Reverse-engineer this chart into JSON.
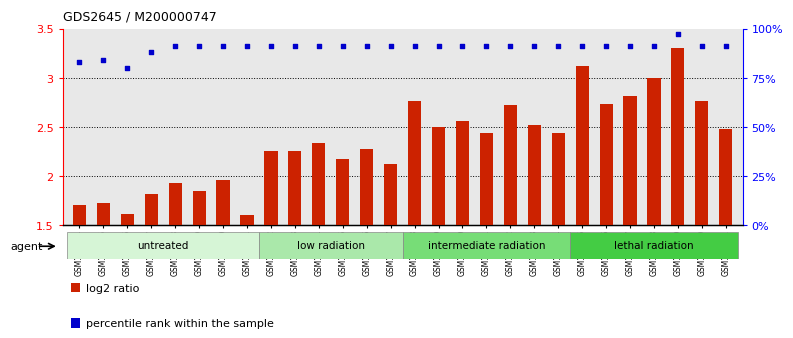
{
  "title": "GDS2645 / M200000747",
  "samples": [
    "GSM158484",
    "GSM158485",
    "GSM158486",
    "GSM158487",
    "GSM158488",
    "GSM158489",
    "GSM158490",
    "GSM158491",
    "GSM158492",
    "GSM158493",
    "GSM158494",
    "GSM158495",
    "GSM158496",
    "GSM158497",
    "GSM158498",
    "GSM158499",
    "GSM158500",
    "GSM158501",
    "GSM158502",
    "GSM158503",
    "GSM158504",
    "GSM158505",
    "GSM158506",
    "GSM158507",
    "GSM158508",
    "GSM158509",
    "GSM158510",
    "GSM158511"
  ],
  "log2_ratio": [
    1.7,
    1.72,
    1.61,
    1.82,
    1.93,
    1.85,
    1.96,
    1.6,
    2.25,
    2.25,
    2.33,
    2.17,
    2.27,
    2.12,
    2.76,
    2.5,
    2.56,
    2.44,
    2.72,
    2.52,
    2.44,
    3.12,
    2.73,
    2.81,
    3.0,
    3.3,
    2.76,
    2.48
  ],
  "percentile_rank": [
    83,
    84,
    80,
    88,
    91,
    91,
    91,
    91,
    91,
    91,
    91,
    91,
    91,
    91,
    91,
    91,
    91,
    91,
    91,
    91,
    91,
    91,
    91,
    91,
    91,
    97,
    91,
    91
  ],
  "groups": [
    {
      "label": "untreated",
      "start": 0,
      "end": 7,
      "color": "#d6f5d6"
    },
    {
      "label": "low radiation",
      "start": 8,
      "end": 13,
      "color": "#aae8aa"
    },
    {
      "label": "intermediate radiation",
      "start": 14,
      "end": 20,
      "color": "#77dd77"
    },
    {
      "label": "lethal radiation",
      "start": 21,
      "end": 27,
      "color": "#44cc44"
    }
  ],
  "bar_color": "#cc2200",
  "dot_color": "#0000cc",
  "ylim_left": [
    1.5,
    3.5
  ],
  "ylim_right": [
    0,
    100
  ],
  "yticks_left": [
    1.5,
    2.0,
    2.5,
    3.0,
    3.5
  ],
  "ytick_labels_left": [
    "1.5",
    "2",
    "2.5",
    "3",
    "3.5"
  ],
  "yticks_right": [
    0,
    25,
    50,
    75,
    100
  ],
  "ytick_labels_right": [
    "0%",
    "25%",
    "50%",
    "75%",
    "100%"
  ],
  "grid_values": [
    2.0,
    2.5,
    3.0
  ],
  "baseline": 1.5,
  "agent_label": "agent",
  "legend_label_red": "log2 ratio",
  "legend_label_blue": "percentile rank within the sample"
}
